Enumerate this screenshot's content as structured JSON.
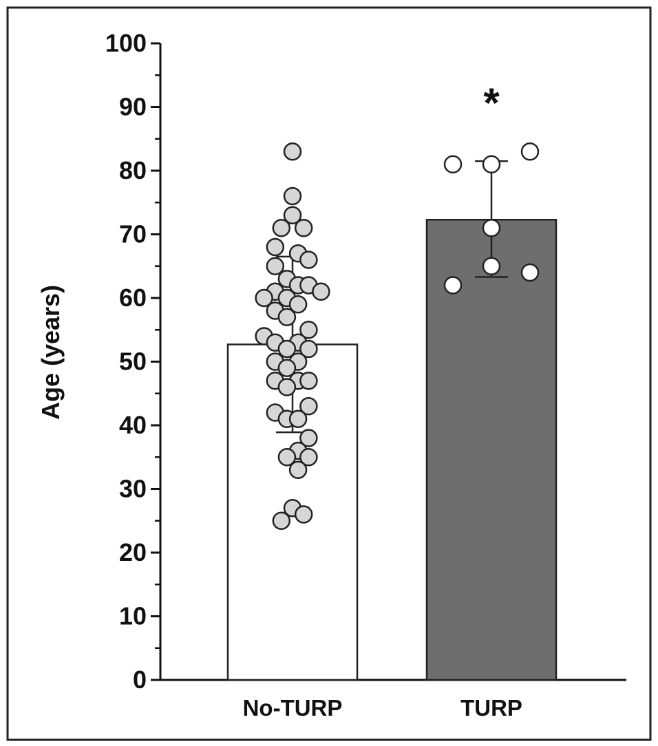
{
  "chart_data": {
    "type": "bar",
    "title": "",
    "xlabel": "",
    "ylabel": "Age (years)",
    "ylim": [
      0,
      100
    ],
    "yticks": [
      "0",
      "10",
      "20",
      "30",
      "40",
      "50",
      "60",
      "70",
      "80",
      "90",
      "100"
    ],
    "grid": false,
    "categories": [
      "No-TURP",
      "TURP"
    ],
    "values": [
      52.7,
      72.3
    ],
    "error": [
      {
        "low": 38.9,
        "high": 66.5
      },
      {
        "low": 63.3,
        "high": 81.5
      }
    ],
    "annotations": [
      "",
      "*"
    ],
    "colors": {
      "no_turp_bar": "#ffffff",
      "turp_bar": "#6e6e6e",
      "no_turp_points": "#d6d6d6",
      "turp_points": "#ffffff",
      "stroke": "#222222"
    },
    "points": [
      [
        {
          "x": 0.0,
          "y": 83
        },
        {
          "x": 0.0,
          "y": 76
        },
        {
          "x": 0.0,
          "y": 73
        },
        {
          "x": -0.18,
          "y": 71
        },
        {
          "x": 0.18,
          "y": 71
        },
        {
          "x": -0.28,
          "y": 68
        },
        {
          "x": 0.09,
          "y": 67
        },
        {
          "x": 0.26,
          "y": 66
        },
        {
          "x": -0.28,
          "y": 65
        },
        {
          "x": -0.09,
          "y": 63
        },
        {
          "x": 0.09,
          "y": 62
        },
        {
          "x": 0.26,
          "y": 62
        },
        {
          "x": -0.28,
          "y": 61
        },
        {
          "x": 0.46,
          "y": 61
        },
        {
          "x": -0.46,
          "y": 60
        },
        {
          "x": -0.09,
          "y": 60
        },
        {
          "x": 0.09,
          "y": 59
        },
        {
          "x": -0.28,
          "y": 58
        },
        {
          "x": -0.09,
          "y": 57
        },
        {
          "x": 0.26,
          "y": 55
        },
        {
          "x": -0.46,
          "y": 54
        },
        {
          "x": -0.28,
          "y": 53
        },
        {
          "x": 0.09,
          "y": 53
        },
        {
          "x": -0.09,
          "y": 52
        },
        {
          "x": 0.26,
          "y": 52
        },
        {
          "x": -0.28,
          "y": 50
        },
        {
          "x": 0.09,
          "y": 50
        },
        {
          "x": -0.09,
          "y": 49
        },
        {
          "x": -0.28,
          "y": 47
        },
        {
          "x": 0.09,
          "y": 47
        },
        {
          "x": 0.26,
          "y": 47
        },
        {
          "x": -0.09,
          "y": 46
        },
        {
          "x": 0.26,
          "y": 43
        },
        {
          "x": -0.28,
          "y": 42
        },
        {
          "x": -0.09,
          "y": 41
        },
        {
          "x": 0.09,
          "y": 41
        },
        {
          "x": 0.26,
          "y": 38
        },
        {
          "x": 0.09,
          "y": 36
        },
        {
          "x": -0.09,
          "y": 35
        },
        {
          "x": 0.26,
          "y": 35
        },
        {
          "x": 0.09,
          "y": 33
        },
        {
          "x": -0.0,
          "y": 27
        },
        {
          "x": 0.18,
          "y": 26
        },
        {
          "x": -0.18,
          "y": 25
        }
      ],
      [
        {
          "x": 0.28,
          "y": 83
        },
        {
          "x": -0.28,
          "y": 81
        },
        {
          "x": 0.0,
          "y": 81
        },
        {
          "x": 0.0,
          "y": 71
        },
        {
          "x": 0.0,
          "y": 65
        },
        {
          "x": 0.28,
          "y": 64
        },
        {
          "x": -0.28,
          "y": 62
        }
      ]
    ]
  }
}
